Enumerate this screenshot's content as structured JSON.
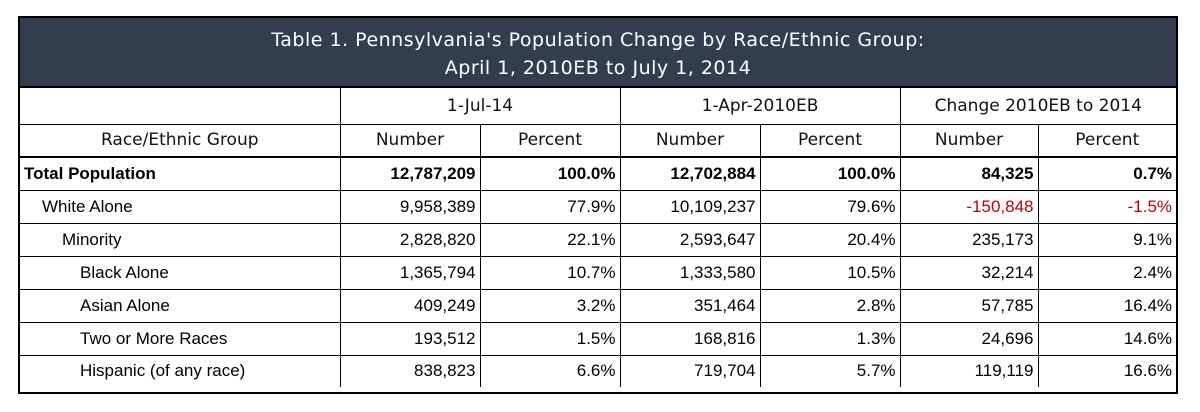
{
  "title": {
    "line1": "Table 1. Pennsylvania's Population Change by Race/Ethnic Group:",
    "line2": "April 1, 2010EB to July 1, 2014"
  },
  "headers": {
    "row_label": "Race/Ethnic Group",
    "groups": [
      "1-Jul-14",
      "1-Apr-2010EB",
      "Change 2010EB to 2014"
    ],
    "sub": [
      "Number",
      "Percent",
      "Number",
      "Percent",
      "Number",
      "Percent"
    ]
  },
  "rows": [
    {
      "label": "Total Population",
      "values": [
        "12,787,209",
        "100.0%",
        "12,702,884",
        "100.0%",
        "84,325",
        "0.7%"
      ]
    },
    {
      "label": "White Alone",
      "values": [
        "9,958,389",
        "77.9%",
        "10,109,237",
        "79.6%",
        "-150,848",
        "-1.5%"
      ]
    },
    {
      "label": "Minority",
      "values": [
        "2,828,820",
        "22.1%",
        "2,593,647",
        "20.4%",
        "235,173",
        "9.1%"
      ]
    },
    {
      "label": "Black Alone",
      "values": [
        "1,365,794",
        "10.7%",
        "1,333,580",
        "10.5%",
        "32,214",
        "2.4%"
      ]
    },
    {
      "label": "Asian Alone",
      "values": [
        "409,249",
        "3.2%",
        "351,464",
        "2.8%",
        "57,785",
        "16.4%"
      ]
    },
    {
      "label": "Two or More Races",
      "values": [
        "193,512",
        "1.5%",
        "168,816",
        "1.3%",
        "24,696",
        "14.6%"
      ]
    },
    {
      "label": "Hispanic (of any race)",
      "values": [
        "838,823",
        "6.6%",
        "719,704",
        "5.7%",
        "119,119",
        "16.6%"
      ]
    }
  ],
  "colors": {
    "title_bg": "#323e50",
    "negative": "#c00000"
  }
}
